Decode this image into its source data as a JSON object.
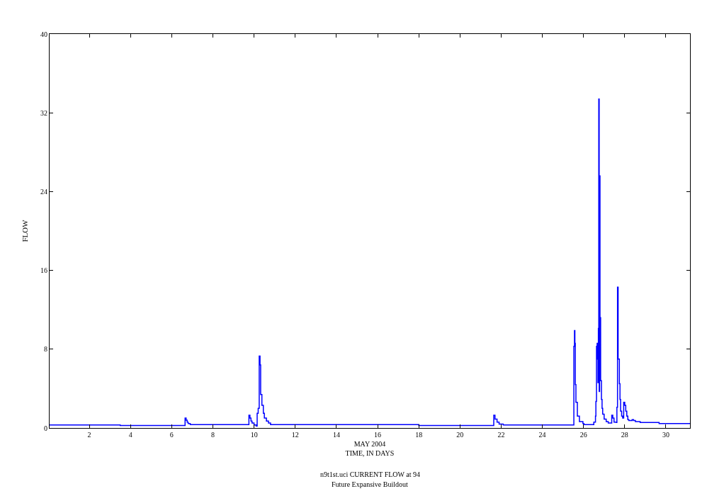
{
  "chart_data": {
    "type": "step",
    "xlabel": "MAY 2004\nTIME, IN DAYS",
    "ylabel": "FLOW",
    "annotations": [
      "n9t1st.uci CURRENT FLOW at 94",
      "Future Expansive Buildout"
    ],
    "x": [
      0.07,
      3.5,
      6.65,
      6.7,
      6.75,
      6.8,
      6.9,
      9.75,
      9.8,
      9.85,
      9.9,
      10.0,
      10.1,
      10.15,
      10.2,
      10.25,
      10.29,
      10.32,
      10.38,
      10.45,
      10.5,
      10.6,
      10.7,
      10.8,
      18.0,
      21.64,
      21.7,
      21.8,
      21.9,
      22.1,
      25.53,
      25.56,
      25.58,
      25.6,
      25.63,
      25.7,
      25.8,
      25.97,
      26.02,
      26.5,
      26.58,
      26.6,
      26.63,
      26.66,
      26.68,
      26.7,
      26.72,
      26.74,
      26.76,
      26.78,
      26.8,
      26.83,
      26.87,
      26.9,
      26.93,
      27.0,
      27.1,
      27.2,
      27.37,
      27.42,
      27.48,
      27.6,
      27.62,
      27.65,
      27.68,
      27.74,
      27.77,
      27.8,
      27.85,
      27.9,
      27.95,
      28.0,
      28.05,
      28.1,
      28.15,
      28.2,
      28.36,
      28.43,
      28.52,
      28.75,
      29.67,
      31.17
    ],
    "series": [
      {
        "color": "#0000ff",
        "values": [
          0.3,
          0.25,
          1.0,
          0.8,
          0.6,
          0.45,
          0.35,
          1.3,
          1.0,
          0.7,
          0.5,
          0.3,
          0.2,
          1.5,
          2.0,
          7.3,
          6.4,
          3.4,
          2.3,
          1.5,
          1.0,
          0.7,
          0.5,
          0.35,
          0.25,
          1.3,
          0.9,
          0.6,
          0.4,
          0.3,
          8.3,
          9.9,
          8.6,
          4.4,
          2.6,
          1.2,
          0.65,
          0.45,
          0.35,
          0.6,
          1.2,
          2.7,
          8.3,
          8.6,
          7.0,
          4.6,
          10.1,
          33.4,
          3.7,
          25.6,
          11.2,
          4.8,
          2.9,
          2.0,
          1.4,
          0.9,
          0.65,
          0.5,
          1.3,
          1.0,
          0.6,
          0.55,
          2.1,
          14.3,
          7.0,
          4.5,
          2.9,
          1.7,
          1.2,
          1.0,
          2.6,
          2.3,
          1.7,
          1.2,
          0.85,
          0.75,
          0.85,
          0.75,
          0.65,
          0.55,
          0.45,
          0.45
        ]
      }
    ],
    "xlim": [
      0.07,
      31.17
    ],
    "xticks": [
      2,
      4,
      6,
      8,
      10,
      12,
      14,
      16,
      18,
      20,
      22,
      24,
      26,
      28,
      30
    ],
    "ylim": [
      0,
      40
    ],
    "yticks": [
      0,
      8,
      16,
      24,
      32,
      40
    ],
    "legend": false
  }
}
